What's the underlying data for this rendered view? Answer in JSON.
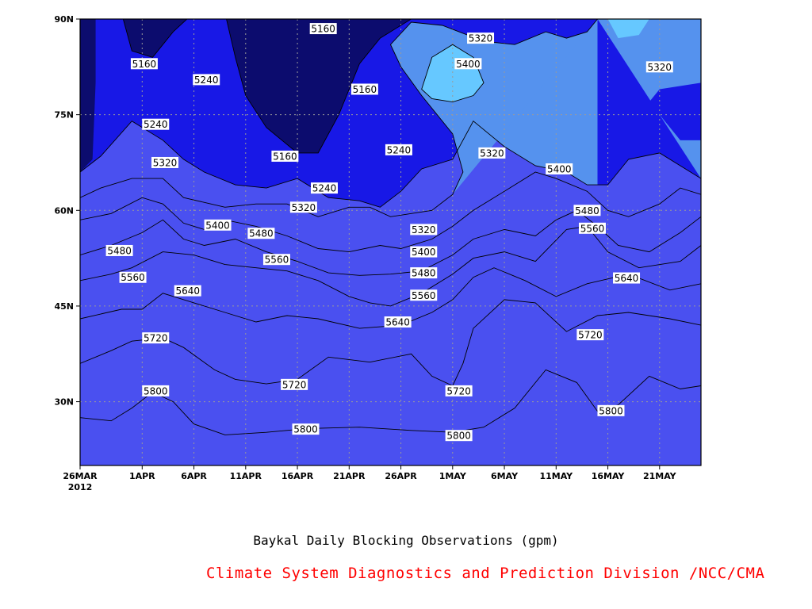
{
  "chart_data": {
    "type": "contour",
    "title": "Baykal Daily Blocking Observations (gpm)",
    "credit": "Climate System Diagnostics and Prediction Division /NCC/CMA",
    "credit_color": "#ff0000",
    "x_ticks": [
      {
        "label": "26MAR",
        "sub": "2012",
        "day": 0
      },
      {
        "label": "1APR",
        "day": 6
      },
      {
        "label": "6APR",
        "day": 11
      },
      {
        "label": "11APR",
        "day": 16
      },
      {
        "label": "16APR",
        "day": 21
      },
      {
        "label": "21APR",
        "day": 26
      },
      {
        "label": "26APR",
        "day": 31
      },
      {
        "label": "1MAY",
        "day": 36
      },
      {
        "label": "6MAY",
        "day": 41
      },
      {
        "label": "11MAY",
        "day": 46
      },
      {
        "label": "16MAY",
        "day": 51
      },
      {
        "label": "21MAY",
        "day": 56
      }
    ],
    "y_ticks": [
      {
        "label": "30N",
        "lat": 30
      },
      {
        "label": "45N",
        "lat": 45
      },
      {
        "label": "60N",
        "lat": 60
      },
      {
        "label": "75N",
        "lat": 75
      },
      {
        "label": "90N",
        "lat": 90
      }
    ],
    "xlim": [
      0,
      60
    ],
    "ylim": [
      20,
      90
    ],
    "grid": true,
    "levels": [
      5160,
      5240,
      5320,
      5400,
      5480,
      5560,
      5640,
      5720,
      5800
    ],
    "bands": [
      {
        "min": 5800,
        "color": "#f46d7a"
      },
      {
        "min": 5720,
        "color": "#ff7045"
      },
      {
        "min": 5640,
        "color": "#ffa068"
      },
      {
        "min": 5560,
        "color": "#ffe0a0"
      },
      {
        "min": 5480,
        "color": "#ffff80"
      },
      {
        "min": 5400,
        "color": "#66c8ff"
      },
      {
        "min": 5320,
        "color": "#5592ee"
      },
      {
        "min": 5240,
        "color": "#4a50f0"
      },
      {
        "min": 5160,
        "color": "#1818e6"
      },
      {
        "min": 0,
        "color": "#0c0c6e"
      }
    ],
    "contours": [
      {
        "level": 5800,
        "points": [
          [
            0,
            27.5
          ],
          [
            3,
            27
          ],
          [
            5,
            29
          ],
          [
            7,
            31.5
          ],
          [
            9,
            30
          ],
          [
            11,
            26.5
          ],
          [
            14,
            24.8
          ],
          [
            18,
            25.2
          ],
          [
            22,
            25.8
          ],
          [
            27,
            26
          ],
          [
            32,
            25.5
          ],
          [
            36,
            25.2
          ],
          [
            39,
            26
          ],
          [
            42,
            29
          ],
          [
            45,
            35
          ],
          [
            48,
            33
          ],
          [
            50,
            28.5
          ],
          [
            52,
            29.5
          ],
          [
            55,
            34
          ],
          [
            58,
            32
          ],
          [
            60,
            32.5
          ]
        ]
      },
      {
        "level": 5720,
        "points": [
          [
            0,
            36
          ],
          [
            3,
            38
          ],
          [
            5,
            39.5
          ],
          [
            8,
            40
          ],
          [
            10,
            38.5
          ],
          [
            13,
            35
          ],
          [
            15,
            33.5
          ],
          [
            18,
            32.8
          ],
          [
            21,
            33.5
          ],
          [
            24,
            37
          ],
          [
            28,
            36.2
          ],
          [
            32,
            37.5
          ],
          [
            34,
            34
          ],
          [
            36,
            32.5
          ],
          [
            37,
            36
          ],
          [
            38,
            41.5
          ],
          [
            41,
            46
          ],
          [
            44,
            45.5
          ],
          [
            47,
            41
          ],
          [
            50,
            43.5
          ],
          [
            53,
            44
          ],
          [
            57,
            43
          ],
          [
            60,
            42
          ]
        ]
      },
      {
        "level": 5640,
        "points": [
          [
            0,
            43
          ],
          [
            4,
            44.5
          ],
          [
            6,
            44.5
          ],
          [
            8,
            47
          ],
          [
            11,
            45.5
          ],
          [
            14,
            44
          ],
          [
            17,
            42.5
          ],
          [
            20,
            43.5
          ],
          [
            23,
            43
          ],
          [
            27,
            41.5
          ],
          [
            31,
            42
          ],
          [
            34,
            44
          ],
          [
            36,
            46
          ],
          [
            38,
            49.5
          ],
          [
            40,
            51
          ],
          [
            43,
            49
          ],
          [
            46,
            46.5
          ],
          [
            49,
            48.5
          ],
          [
            53,
            50
          ],
          [
            57,
            47.5
          ],
          [
            60,
            48.5
          ]
        ]
      },
      {
        "level": 5560,
        "points": [
          [
            0,
            49
          ],
          [
            3,
            50
          ],
          [
            5,
            51
          ],
          [
            8,
            53.5
          ],
          [
            11,
            53
          ],
          [
            14,
            51.5
          ],
          [
            17,
            51
          ],
          [
            20,
            50.5
          ],
          [
            23,
            49
          ],
          [
            26,
            46.5
          ],
          [
            28,
            45.5
          ],
          [
            30,
            45
          ],
          [
            33,
            47
          ],
          [
            36,
            50
          ],
          [
            38,
            52.5
          ],
          [
            41,
            53.5
          ],
          [
            44,
            52
          ],
          [
            47,
            57
          ],
          [
            49,
            57.5
          ],
          [
            51,
            53.5
          ],
          [
            54,
            51
          ],
          [
            58,
            52
          ],
          [
            60,
            54.5
          ]
        ]
      },
      {
        "level": 5480,
        "points": [
          [
            0,
            53
          ],
          [
            3,
            54.5
          ],
          [
            6,
            56.5
          ],
          [
            8,
            58.5
          ],
          [
            10,
            55.5
          ],
          [
            12,
            54.5
          ],
          [
            15,
            55.5
          ],
          [
            18,
            53.5
          ],
          [
            21,
            52
          ],
          [
            24,
            50.2
          ],
          [
            27,
            49.8
          ],
          [
            30,
            50
          ],
          [
            33,
            50.5
          ],
          [
            36,
            53
          ],
          [
            38,
            55.5
          ],
          [
            41,
            57
          ],
          [
            44,
            56
          ],
          [
            46,
            58.5
          ],
          [
            48,
            60
          ],
          [
            50,
            57.5
          ],
          [
            52,
            54.5
          ],
          [
            55,
            53.5
          ],
          [
            58,
            56.5
          ],
          [
            60,
            59
          ]
        ]
      },
      {
        "level": 5400,
        "points": [
          [
            0,
            58.5
          ],
          [
            3,
            59.5
          ],
          [
            6,
            62
          ],
          [
            8,
            61
          ],
          [
            10,
            58
          ],
          [
            12,
            57
          ],
          [
            14,
            58.5
          ],
          [
            17,
            57.5
          ],
          [
            20,
            56
          ],
          [
            23,
            54
          ],
          [
            26,
            53.5
          ],
          [
            29,
            54.5
          ],
          [
            31,
            54
          ],
          [
            34,
            55.5
          ],
          [
            36,
            57.5
          ],
          [
            38,
            60
          ],
          [
            41,
            63
          ],
          [
            44,
            66
          ],
          [
            46,
            65
          ],
          [
            49,
            63
          ],
          [
            51,
            60
          ],
          [
            53,
            59
          ],
          [
            56,
            61
          ],
          [
            58,
            63.5
          ],
          [
            60,
            62.5
          ]
        ]
      },
      {
        "level": 5320,
        "points": [
          [
            0,
            62
          ],
          [
            2,
            63.5
          ],
          [
            5,
            65
          ],
          [
            8,
            65
          ],
          [
            10,
            62
          ],
          [
            14,
            60.5
          ],
          [
            17,
            61
          ],
          [
            20,
            61
          ],
          [
            23,
            59
          ],
          [
            26,
            60.5
          ],
          [
            28,
            60.5
          ],
          [
            30,
            59
          ],
          [
            32,
            59.5
          ],
          [
            34,
            60
          ],
          [
            36,
            62.5
          ],
          [
            37,
            66
          ],
          [
            36,
            72
          ],
          [
            33,
            78
          ],
          [
            31,
            82.5
          ],
          [
            30,
            86
          ],
          [
            32,
            89.5
          ],
          [
            35,
            89
          ],
          [
            39,
            86.5
          ],
          [
            42,
            86
          ],
          [
            45,
            88
          ],
          [
            47,
            87
          ],
          [
            49,
            88
          ],
          [
            50,
            90
          ]
        ]
      },
      {
        "level": 5240,
        "points": [
          [
            0,
            66
          ],
          [
            2,
            68.5
          ],
          [
            5,
            74
          ],
          [
            8,
            71
          ],
          [
            10,
            68
          ],
          [
            12,
            66
          ],
          [
            15,
            64
          ],
          [
            18,
            63.5
          ],
          [
            21,
            65
          ],
          [
            24,
            62
          ],
          [
            27,
            61.5
          ],
          [
            29,
            60.5
          ],
          [
            31,
            63
          ],
          [
            33,
            66.5
          ],
          [
            36,
            68
          ],
          [
            38,
            74
          ],
          [
            41,
            70
          ],
          [
            44,
            67
          ],
          [
            47,
            66
          ],
          [
            49,
            64
          ],
          [
            51,
            64
          ],
          [
            53,
            68
          ],
          [
            56,
            69
          ],
          [
            58,
            67
          ],
          [
            60,
            65
          ],
          [
            60,
            70
          ]
        ]
      },
      {
        "level": 5160,
        "points": [
          [
            4,
            91
          ],
          [
            5,
            85
          ],
          [
            7,
            84
          ],
          [
            9,
            88
          ],
          [
            11,
            91
          ]
        ]
      },
      {
        "level": 5160,
        "points": [
          [
            14,
            91
          ],
          [
            15,
            84
          ],
          [
            16,
            78
          ],
          [
            18,
            73
          ],
          [
            21,
            69
          ],
          [
            23,
            69
          ],
          [
            25,
            75
          ],
          [
            27,
            83
          ],
          [
            29,
            87
          ],
          [
            32,
            90
          ],
          [
            34,
            91
          ]
        ]
      },
      {
        "level": 5400,
        "points": [
          [
            33,
            79
          ],
          [
            34,
            84
          ],
          [
            36,
            86
          ],
          [
            38,
            84
          ],
          [
            39,
            80
          ],
          [
            38,
            78
          ],
          [
            36,
            77
          ],
          [
            34,
            77.5
          ],
          [
            33,
            79
          ]
        ]
      }
    ],
    "contour_labels": [
      {
        "text": "5160",
        "day": 6.2,
        "lat": 83
      },
      {
        "text": "5160",
        "day": 23.5,
        "lat": 88.5
      },
      {
        "text": "5160",
        "day": 27.5,
        "lat": 79
      },
      {
        "text": "5160",
        "day": 19.8,
        "lat": 68.5
      },
      {
        "text": "5240",
        "day": 12.2,
        "lat": 80.5
      },
      {
        "text": "5240",
        "day": 7.3,
        "lat": 73.5
      },
      {
        "text": "5240",
        "day": 30.8,
        "lat": 69.5
      },
      {
        "text": "5240",
        "day": 23.6,
        "lat": 63.5
      },
      {
        "text": "5320",
        "day": 38.7,
        "lat": 87
      },
      {
        "text": "5320",
        "day": 56,
        "lat": 82.5
      },
      {
        "text": "5320",
        "day": 8.2,
        "lat": 67.5
      },
      {
        "text": "5320",
        "day": 39.8,
        "lat": 69
      },
      {
        "text": "5320",
        "day": 21.6,
        "lat": 60.5
      },
      {
        "text": "5320",
        "day": 33.2,
        "lat": 57
      },
      {
        "text": "5400",
        "day": 37.5,
        "lat": 83
      },
      {
        "text": "5400",
        "day": 46.3,
        "lat": 66.5
      },
      {
        "text": "5400",
        "day": 13.3,
        "lat": 57.7
      },
      {
        "text": "5400",
        "day": 33.2,
        "lat": 53.5
      },
      {
        "text": "5480",
        "day": 49,
        "lat": 60
      },
      {
        "text": "5480",
        "day": 3.8,
        "lat": 53.7
      },
      {
        "text": "5480",
        "day": 17.5,
        "lat": 56.4
      },
      {
        "text": "5480",
        "day": 33.2,
        "lat": 50.2
      },
      {
        "text": "5560",
        "day": 49.5,
        "lat": 57.2
      },
      {
        "text": "5560",
        "day": 5.1,
        "lat": 49.5
      },
      {
        "text": "5560",
        "day": 19,
        "lat": 52.3
      },
      {
        "text": "5560",
        "day": 33.2,
        "lat": 46.7
      },
      {
        "text": "5640",
        "day": 10.4,
        "lat": 47.4
      },
      {
        "text": "5640",
        "day": 52.8,
        "lat": 49.4
      },
      {
        "text": "5640",
        "day": 30.7,
        "lat": 42.5
      },
      {
        "text": "5720",
        "day": 7.3,
        "lat": 40
      },
      {
        "text": "5720",
        "day": 49.3,
        "lat": 40.5
      },
      {
        "text": "5720",
        "day": 20.7,
        "lat": 32.7
      },
      {
        "text": "5720",
        "day": 36.6,
        "lat": 31.7
      },
      {
        "text": "5800",
        "day": 7.3,
        "lat": 31.7
      },
      {
        "text": "5800",
        "day": 51.3,
        "lat": 28.6
      },
      {
        "text": "5800",
        "day": 21.8,
        "lat": 25.7
      },
      {
        "text": "5800",
        "day": 36.6,
        "lat": 24.7
      }
    ]
  }
}
